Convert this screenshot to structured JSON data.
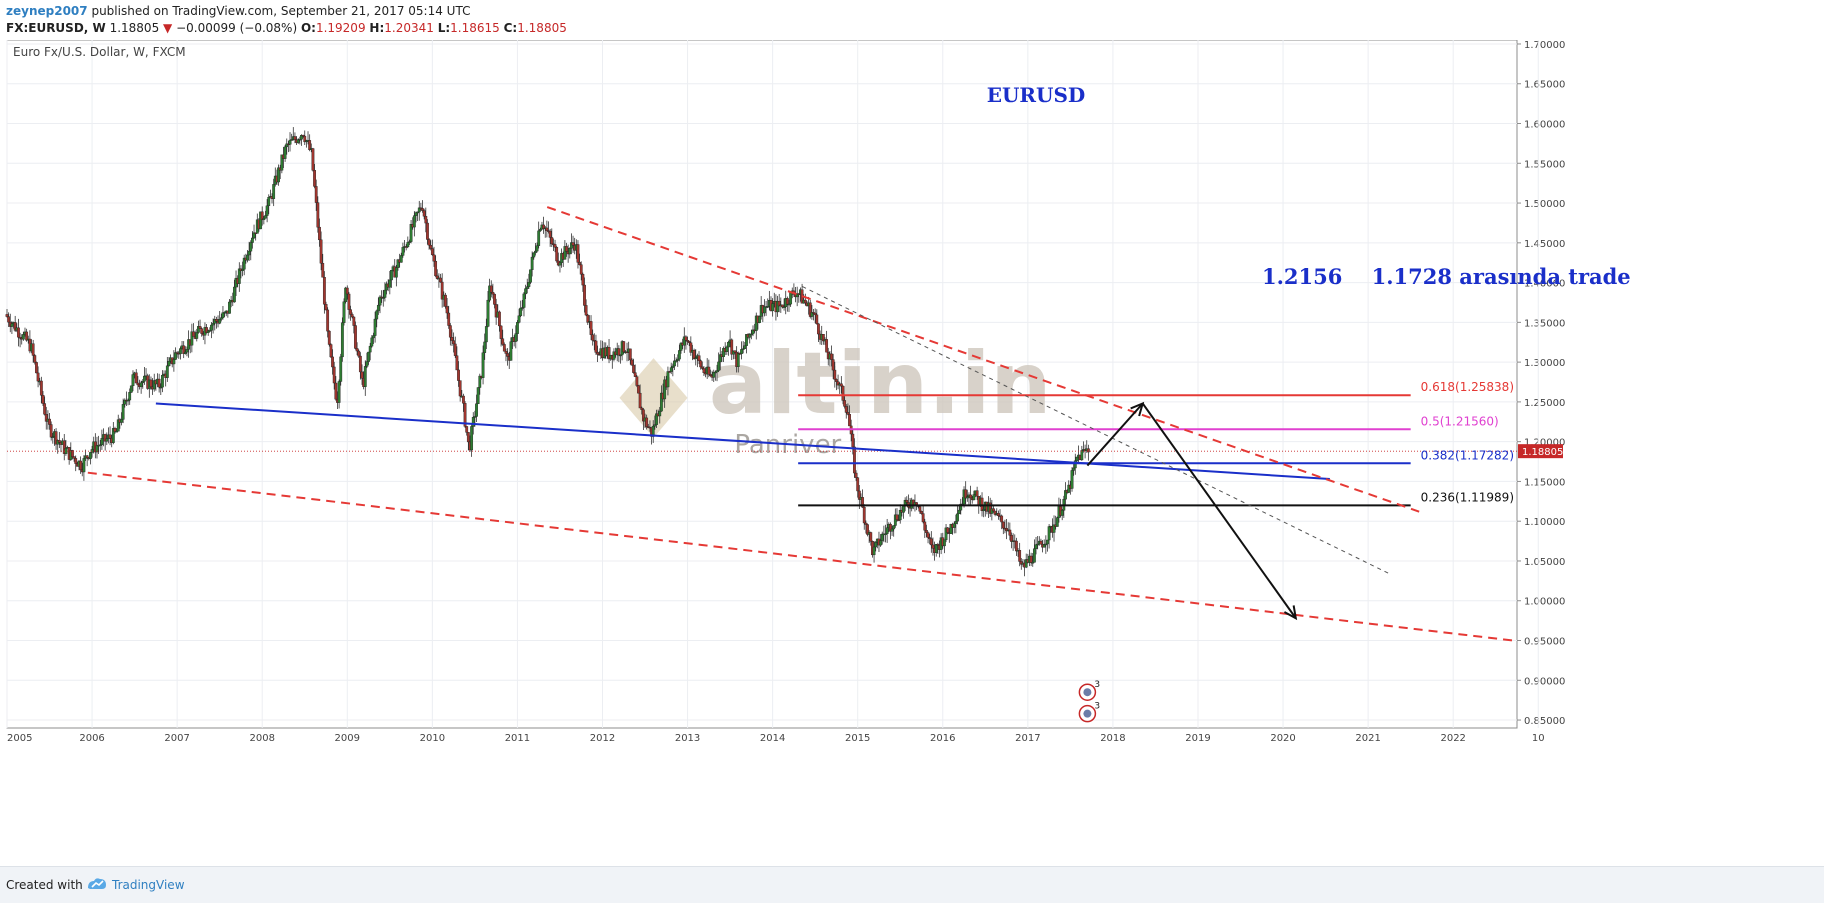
{
  "header": {
    "line1": {
      "user": "zeynep2007",
      "published": "published on TradingView.com, September 21, 2017 05:14 UTC"
    },
    "line2": {
      "symbol": "FX:EURUSD, W",
      "price": "1.18805",
      "arrow": "▼",
      "change": "−0.00099 (−0.08%)",
      "o_label": "O:",
      "o": "1.19209",
      "h_label": "H:",
      "h": "1.20341",
      "l_label": "L:",
      "l": "1.18615",
      "c_label": "C:",
      "c": "1.18805"
    }
  },
  "chart_data": {
    "type": "candlestick",
    "instrument_label": "Euro Fx/U.S. Dollar, W, FXCM",
    "title": "EURUSD",
    "annotation": "1.2156    1.1728 arasında trade",
    "watermark": {
      "logo": "altin.in",
      "sub": "Panriver"
    },
    "x_ticks": [
      "2005",
      "2006",
      "2007",
      "2008",
      "2009",
      "2010",
      "2011",
      "2012",
      "2013",
      "2014",
      "2015",
      "2016",
      "2017",
      "2018",
      "2019",
      "2020",
      "2021",
      "2022",
      "10"
    ],
    "x_range": [
      2005.0,
      2022.75
    ],
    "y_ticks": [
      "1.70000",
      "1.65000",
      "1.60000",
      "1.55000",
      "1.50000",
      "1.45000",
      "1.40000",
      "1.35000",
      "1.30000",
      "1.25000",
      "1.20000",
      "1.15000",
      "1.10000",
      "1.05000",
      "1.00000",
      "0.95000",
      "0.90000",
      "0.85000"
    ],
    "y_range": [
      0.84,
      1.705
    ],
    "last_price": {
      "value": 1.18805,
      "label": "1.18805",
      "color": "#c62828"
    },
    "price_path": [
      [
        2005.0,
        1.36
      ],
      [
        2005.3,
        1.32
      ],
      [
        2005.5,
        1.22
      ],
      [
        2005.7,
        1.19
      ],
      [
        2005.9,
        1.17
      ],
      [
        2006.0,
        1.19
      ],
      [
        2006.3,
        1.21
      ],
      [
        2006.5,
        1.28
      ],
      [
        2006.8,
        1.27
      ],
      [
        2007.0,
        1.31
      ],
      [
        2007.3,
        1.34
      ],
      [
        2007.6,
        1.36
      ],
      [
        2007.9,
        1.46
      ],
      [
        2008.1,
        1.5
      ],
      [
        2008.3,
        1.57
      ],
      [
        2008.5,
        1.59
      ],
      [
        2008.6,
        1.56
      ],
      [
        2008.8,
        1.32
      ],
      [
        2008.9,
        1.25
      ],
      [
        2009.0,
        1.4
      ],
      [
        2009.2,
        1.27
      ],
      [
        2009.4,
        1.38
      ],
      [
        2009.6,
        1.42
      ],
      [
        2009.9,
        1.5
      ],
      [
        2010.0,
        1.44
      ],
      [
        2010.2,
        1.36
      ],
      [
        2010.4,
        1.23
      ],
      [
        2010.45,
        1.19
      ],
      [
        2010.6,
        1.29
      ],
      [
        2010.7,
        1.4
      ],
      [
        2010.9,
        1.3
      ],
      [
        2011.1,
        1.38
      ],
      [
        2011.3,
        1.48
      ],
      [
        2011.5,
        1.43
      ],
      [
        2011.7,
        1.45
      ],
      [
        2011.9,
        1.32
      ],
      [
        2012.1,
        1.31
      ],
      [
        2012.3,
        1.32
      ],
      [
        2012.5,
        1.23
      ],
      [
        2012.6,
        1.21
      ],
      [
        2012.8,
        1.29
      ],
      [
        2013.0,
        1.33
      ],
      [
        2013.2,
        1.29
      ],
      [
        2013.3,
        1.28
      ],
      [
        2013.5,
        1.33
      ],
      [
        2013.6,
        1.3
      ],
      [
        2013.9,
        1.37
      ],
      [
        2014.1,
        1.37
      ],
      [
        2014.3,
        1.39
      ],
      [
        2014.5,
        1.36
      ],
      [
        2014.7,
        1.3
      ],
      [
        2014.9,
        1.24
      ],
      [
        2015.0,
        1.15
      ],
      [
        2015.2,
        1.06
      ],
      [
        2015.3,
        1.08
      ],
      [
        2015.5,
        1.11
      ],
      [
        2015.7,
        1.13
      ],
      [
        2015.9,
        1.06
      ],
      [
        2016.1,
        1.09
      ],
      [
        2016.3,
        1.14
      ],
      [
        2016.6,
        1.11
      ],
      [
        2016.8,
        1.09
      ],
      [
        2016.95,
        1.04
      ],
      [
        2017.1,
        1.06
      ],
      [
        2017.3,
        1.09
      ],
      [
        2017.5,
        1.14
      ],
      [
        2017.6,
        1.18
      ],
      [
        2017.72,
        1.19
      ]
    ],
    "fibonacci": [
      {
        "label": "0.618(1.25838)",
        "value": 1.25838,
        "color": "#e53935"
      },
      {
        "label": "0.5(1.21560)",
        "value": 1.2156,
        "color": "#e040d0"
      },
      {
        "label": "0.382(1.17282)",
        "value": 1.17282,
        "color": "#1a2fc9"
      },
      {
        "label": "0.236(1.11989)",
        "value": 1.11989,
        "color": "#111111"
      }
    ],
    "fib_range_x": [
      2014.3,
      2021.5
    ],
    "trendlines": [
      {
        "kind": "solid",
        "color": "#1a2fc9",
        "p1": [
          2006.75,
          1.248
        ],
        "p2": [
          2020.55,
          1.153
        ]
      },
      {
        "kind": "dashed",
        "color": "#e53935",
        "p1": [
          2011.35,
          1.495
        ],
        "p2": [
          2021.6,
          1.112
        ]
      },
      {
        "kind": "dashed",
        "color": "#e53935",
        "p1": [
          2005.95,
          1.161
        ],
        "p2": [
          2022.7,
          0.95
        ]
      },
      {
        "kind": "thin-dashed",
        "color": "#555555",
        "p1": [
          2014.35,
          1.395
        ],
        "p2": [
          2021.25,
          1.034
        ]
      }
    ],
    "projection_arrows": [
      {
        "from": [
          2017.7,
          1.17
        ],
        "to": [
          2018.35,
          1.248
        ]
      },
      {
        "from": [
          2018.35,
          1.248
        ],
        "to": [
          2020.15,
          0.978
        ]
      }
    ],
    "event_markers": [
      {
        "year": 2017.7,
        "y": 0.885,
        "count": "3"
      },
      {
        "year": 2017.7,
        "y": 0.858,
        "count": "3"
      }
    ],
    "colors": {
      "up": "#2e7d32",
      "down": "#a1362f",
      "grid": "#eceef2"
    }
  },
  "footer": {
    "created": "Created with",
    "brand": "TradingView"
  }
}
